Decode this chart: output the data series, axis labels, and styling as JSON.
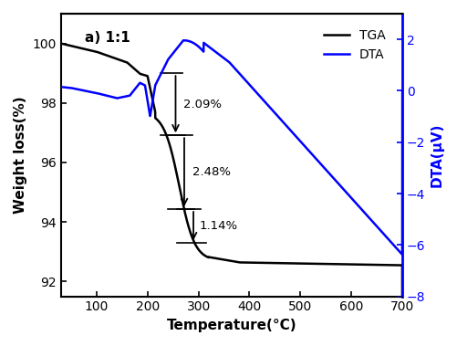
{
  "title": "a) 1:1",
  "xlabel": "Temperature(°C)",
  "ylabel_left": "Weight loss(%)",
  "ylabel_right": "DTA(μV)",
  "xlim": [
    30,
    700
  ],
  "ylim_left": [
    91.5,
    101
  ],
  "ylim_right": [
    -8,
    3
  ],
  "yticks_left": [
    92,
    94,
    96,
    98,
    100
  ],
  "yticks_right": [
    -8,
    -6,
    -4,
    -2,
    0,
    2
  ],
  "xticks": [
    100,
    200,
    300,
    400,
    500,
    600,
    700
  ],
  "tga_color": "#000000",
  "dta_color": "#0000ff",
  "background_color": "#ffffff"
}
